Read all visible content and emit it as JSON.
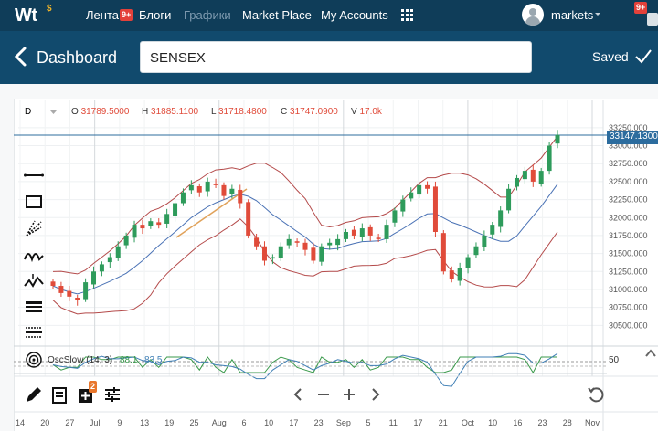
{
  "nav": {
    "logo": "Wt",
    "logo_sup": "$",
    "items": [
      {
        "label": "Лента",
        "badge": "9+"
      },
      {
        "label": "Блоги"
      },
      {
        "label": "Графики"
      },
      {
        "label": "Market Place"
      },
      {
        "label": "My Accounts"
      }
    ],
    "user": "markets",
    "user_badge": "9+"
  },
  "header": {
    "title": "Dashboard",
    "search_value": "SENSEX",
    "saved_label": "Saved"
  },
  "chart_toolbar": {
    "interval": "D",
    "open_label": "O",
    "open": "31789.5000",
    "high_label": "H",
    "high": "31885.1100",
    "low_label": "L",
    "low": "31718.4800",
    "close_label": "C",
    "close": "31747.0900",
    "volume_label": "V",
    "volume": "17.0k"
  },
  "indicator": {
    "name": "OscSlow (14, 3)",
    "value1": "88.1",
    "value2": "83.5",
    "level": "50"
  },
  "bottom_badge": "2",
  "chart_data": {
    "type": "candlestick",
    "symbol": "SENSEX",
    "current_price": "33147.1300",
    "ylim": [
      30250,
      33350
    ],
    "y_ticks": [
      "33250.000",
      "33000.000",
      "32750.000",
      "32500.000",
      "32250.000",
      "32000.000",
      "31750.000",
      "31500.000",
      "31250.000",
      "31000.000",
      "30750.000",
      "30500.000"
    ],
    "x_ticks": [
      "14",
      "20",
      "27",
      "Jul",
      "9",
      "13",
      "19",
      "25",
      "Aug",
      "6",
      "10",
      "17",
      "23",
      "Sep",
      "5",
      "11",
      "17",
      "21",
      "Oct",
      "10",
      "16",
      "23",
      "28",
      "Nov"
    ],
    "closes_approx": [
      31050,
      30950,
      30900,
      30850,
      31100,
      31250,
      31350,
      31450,
      31600,
      31750,
      31900,
      31850,
      31950,
      31900,
      32050,
      32200,
      32350,
      32450,
      32350,
      32500,
      32450,
      32300,
      32400,
      32200,
      31750,
      31600,
      31400,
      31450,
      31600,
      31700,
      31650,
      31550,
      31400,
      31600,
      31650,
      31700,
      31800,
      31750,
      31850,
      31750,
      31700,
      31900,
      32100,
      32250,
      32350,
      32450,
      32400,
      31800,
      31250,
      31150,
      31300,
      31450,
      31600,
      31750,
      31900,
      32100,
      32400,
      32550,
      32650,
      32500,
      32650,
      33000,
      33150
    ],
    "colors": {
      "up": "#2e9b5b",
      "down": "#e04b3a",
      "bands": "#b44a4a",
      "ma": "#4a72b5",
      "price_line": "#2c6c9e",
      "osc_green": "#3a9a4b",
      "osc_blue": "#3f7fb5"
    }
  }
}
